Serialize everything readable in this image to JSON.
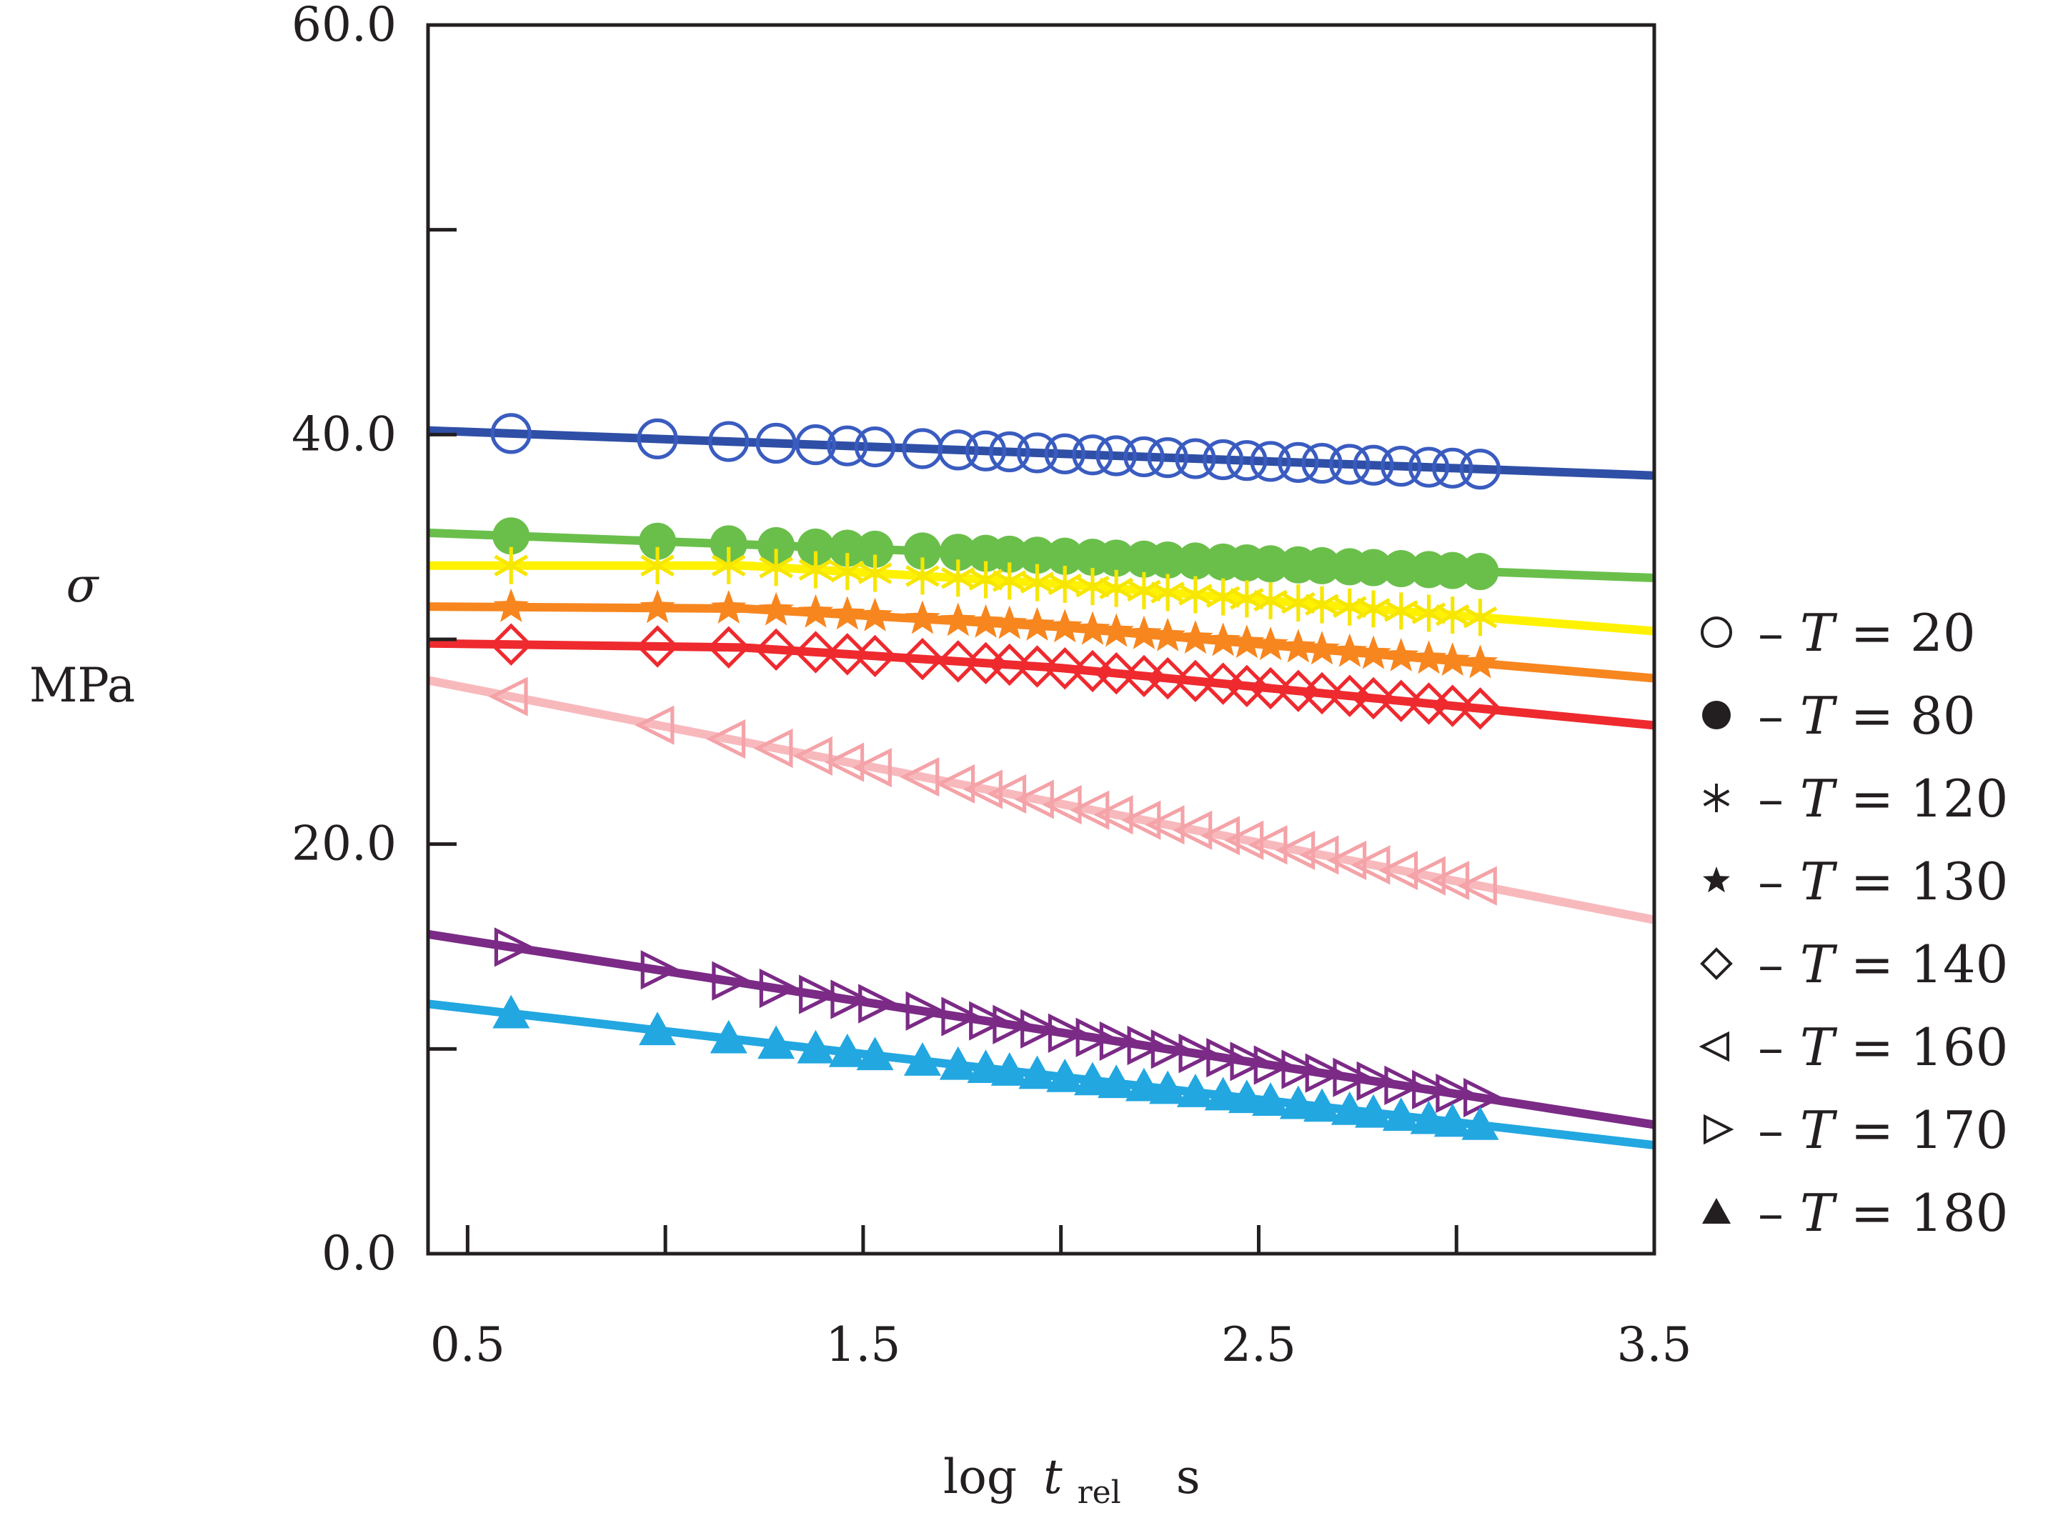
{
  "chart_data": {
    "type": "line",
    "title": "",
    "ylabel_symbol": "σ",
    "ylabel_unit": "MPa",
    "xlabel": {
      "log": "log",
      "t": "t",
      "sub": "rel",
      "unit": "s"
    },
    "xlim": [
      0.4,
      3.5
    ],
    "ylim": [
      0,
      60
    ],
    "x_ticks": [
      0.5,
      1.0,
      1.5,
      2.0,
      2.5,
      3.0,
      3.5
    ],
    "x_tick_labels": {
      "0.5": "0.5",
      "1.5": "1.5",
      "2.5": "2.5",
      "3.5": "3.5"
    },
    "y_ticks": [
      0,
      10,
      20,
      30,
      40,
      50,
      60
    ],
    "y_tick_labels": {
      "0": "0.0",
      "20": "20.0",
      "40": "40.0",
      "60": "60.0"
    },
    "x_points": [
      0.61,
      0.98,
      1.16,
      1.28,
      1.38,
      1.46,
      1.53,
      1.65,
      1.74,
      1.81,
      1.87,
      1.94,
      2.01,
      2.08,
      2.14,
      2.21,
      2.27,
      2.34,
      2.41,
      2.47,
      2.53,
      2.6,
      2.66,
      2.73,
      2.79,
      2.86,
      2.93,
      2.99,
      3.06
    ],
    "legend_prefix": "– ",
    "legend_var": "T",
    "legend_eq": " = ",
    "series": [
      {
        "name": "T = 20",
        "label_value": "20",
        "marker": "circle-open",
        "color": "#2f4fa6",
        "marker_color": "#3a5cc0",
        "line": [
          [
            0.4,
            40.2
          ],
          [
            3.5,
            38.0
          ]
        ]
      },
      {
        "name": "T = 80",
        "label_value": "80",
        "marker": "circle-filled",
        "color": "#6abf4b",
        "marker_color": "#6abf4b",
        "line": [
          [
            0.4,
            35.2
          ],
          [
            3.5,
            33.0
          ]
        ]
      },
      {
        "name": "T = 120",
        "label_value": "120",
        "marker": "asterisk",
        "color": "#fff200",
        "marker_color": "#f6e600",
        "line": [
          [
            0.4,
            33.6
          ],
          [
            1.2,
            33.6
          ],
          [
            2.0,
            32.7
          ],
          [
            3.5,
            30.4
          ]
        ]
      },
      {
        "name": "T = 130",
        "label_value": "130",
        "marker": "star",
        "color": "#f7861f",
        "marker_color": "#f7861f",
        "line": [
          [
            0.4,
            31.6
          ],
          [
            1.2,
            31.5
          ],
          [
            2.0,
            30.6
          ],
          [
            3.5,
            28.1
          ]
        ]
      },
      {
        "name": "T = 140",
        "label_value": "140",
        "marker": "diamond-open",
        "color": "#ee2a2f",
        "marker_color": "#ee2a2f",
        "line": [
          [
            0.4,
            29.8
          ],
          [
            1.2,
            29.6
          ],
          [
            2.0,
            28.6
          ],
          [
            3.5,
            25.8
          ]
        ]
      },
      {
        "name": "T = 160",
        "label_value": "160",
        "marker": "triangle-left",
        "color": "#f8b9bd",
        "marker_color": "#f4a3a8",
        "line": [
          [
            0.4,
            28.0
          ],
          [
            3.5,
            16.3
          ]
        ]
      },
      {
        "name": "T = 170",
        "label_value": "170",
        "marker": "triangle-right",
        "color": "#7b2a86",
        "marker_color": "#7b2a86",
        "line": [
          [
            0.4,
            15.6
          ],
          [
            3.5,
            6.3
          ]
        ]
      },
      {
        "name": "T = 180",
        "label_value": "180",
        "marker": "triangle-up",
        "color": "#22a7e1",
        "marker_color": "#22a7e1",
        "line": [
          [
            0.4,
            12.2
          ],
          [
            3.5,
            5.3
          ]
        ]
      }
    ]
  }
}
